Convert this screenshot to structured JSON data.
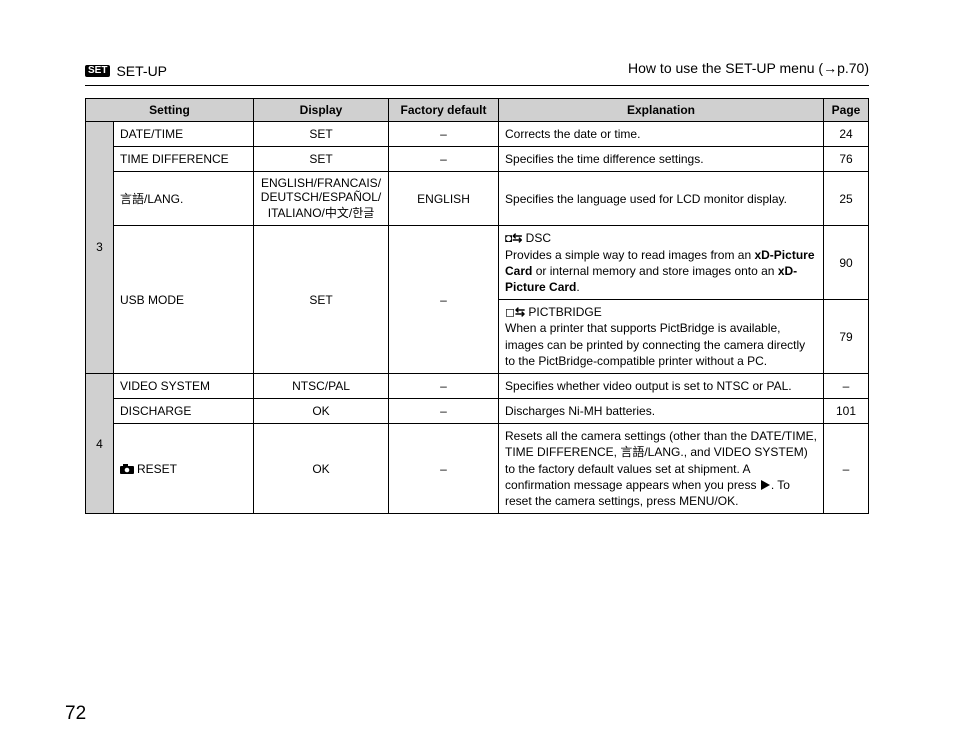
{
  "header": {
    "badge": "SET",
    "title": "SET-UP",
    "rightText": "How to use the SET-UP menu (→p.70)"
  },
  "columns": {
    "setting": "Setting",
    "display": "Display",
    "default": "Factory default",
    "explanation": "Explanation",
    "page": "Page"
  },
  "groups": [
    {
      "num": "3",
      "rows": [
        {
          "setting": "DATE/TIME",
          "display": "SET",
          "default": "–",
          "explHtml": "Corrects the date or time.",
          "page": "24"
        },
        {
          "setting": "TIME DIFFERENCE",
          "display": "SET",
          "default": "–",
          "explHtml": "Specifies the time difference settings.",
          "page": "76"
        },
        {
          "setting": "言語/LANG.",
          "display": "ENGLISH/FRANCAIS/\nDEUTSCH/ESPAÑOL/\nITALIANO/中文/한글",
          "default": "ENGLISH",
          "explHtml": "Specifies the language used for LCD monitor display.",
          "page": "25"
        },
        {
          "setting": "USB MODE",
          "display": "SET",
          "default": "–",
          "rowspanMain": 2,
          "explHtml": "◘<span class='swap-icon'>⇆</span> DSC<br>Provides a simple way to read images from an <b>xD-Picture Card</b> or internal memory and store images onto an <b>xD-Picture Card</b>.",
          "page": "90"
        },
        {
          "subExplOnly": true,
          "explHtml": "◻<span class='swap-icon'>⇆</span> PICTBRIDGE<br>When a printer that supports PictBridge is available, images can be printed by connecting the camera directly to the PictBridge-compatible printer without a PC.",
          "page": "79"
        }
      ]
    },
    {
      "num": "4",
      "rows": [
        {
          "setting": "VIDEO SYSTEM",
          "display": "NTSC/PAL",
          "default": "–",
          "explHtml": "Specifies whether video output is set to NTSC or PAL.",
          "page": "–"
        },
        {
          "setting": "DISCHARGE",
          "display": "OK",
          "default": "–",
          "explHtml": "Discharges Ni-MH batteries.",
          "page": "101"
        },
        {
          "settingHtml": "<svg class='cam-icon' width='14' height='10' viewBox='0 0 14 10'><rect x='0' y='2' width='14' height='8' rx='1' fill='#000'/><rect x='3' y='0' width='5' height='3' fill='#000'/><circle cx='7' cy='6' r='2.3' fill='#fff'/></svg>RESET",
          "display": "OK",
          "default": "–",
          "explHtml": "Resets all the camera settings (other than the DATE/TIME, TIME DIFFERENCE, 言語/LANG., and VIDEO SYSTEM) to the factory default values set at shipment. A confirmation message appears when you press <span class='play-icon'></span>. To reset the camera settings, press MENU/OK.",
          "page": "–"
        }
      ]
    }
  ],
  "pageNumber": "72"
}
